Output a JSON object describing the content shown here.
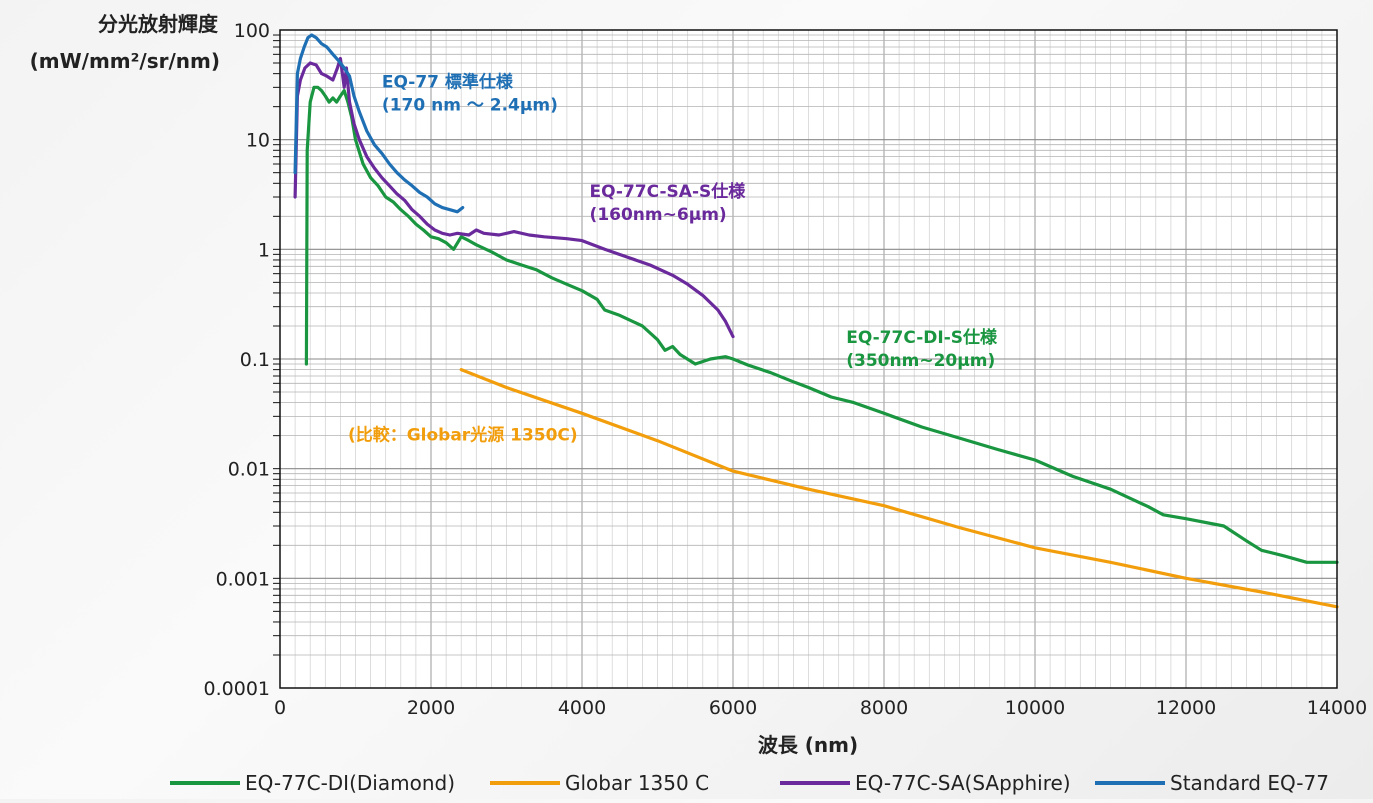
{
  "chart_data": {
    "type": "line",
    "ylabel_line1": "分光放射輝度",
    "ylabel_line2": "(mW/mm²/sr/nm)",
    "xlabel": "波長 (nm)",
    "x_scale": "linear",
    "y_scale": "log",
    "xlim": [
      0,
      14000
    ],
    "ylim": [
      0.0001,
      100
    ],
    "x_ticks": [
      0,
      2000,
      4000,
      6000,
      8000,
      10000,
      12000,
      14000
    ],
    "x_tick_labels": [
      "0",
      "2000",
      "4000",
      "6000",
      "8000",
      "10000",
      "12000",
      "14000"
    ],
    "y_ticks": [
      0.0001,
      0.001,
      0.01,
      0.1,
      1,
      10,
      100
    ],
    "y_tick_labels": [
      "0.0001",
      "0.001",
      "0.01",
      "0.1",
      "1",
      "10",
      "100"
    ],
    "grid": true,
    "legend_position": "bottom",
    "series": [
      {
        "name": "EQ-77C-DI(Diamond)",
        "color": "#1a9641",
        "points": [
          [
            350,
            0.09
          ],
          [
            360,
            8
          ],
          [
            400,
            22
          ],
          [
            450,
            30
          ],
          [
            500,
            30
          ],
          [
            550,
            28
          ],
          [
            600,
            25
          ],
          [
            650,
            22
          ],
          [
            700,
            24
          ],
          [
            750,
            22
          ],
          [
            800,
            25
          ],
          [
            850,
            28
          ],
          [
            900,
            22
          ],
          [
            950,
            16
          ],
          [
            1000,
            10
          ],
          [
            1100,
            6
          ],
          [
            1200,
            4.5
          ],
          [
            1300,
            3.8
          ],
          [
            1400,
            3.0
          ],
          [
            1500,
            2.7
          ],
          [
            1600,
            2.3
          ],
          [
            1700,
            2.0
          ],
          [
            1800,
            1.7
          ],
          [
            1900,
            1.5
          ],
          [
            2000,
            1.3
          ],
          [
            2100,
            1.25
          ],
          [
            2200,
            1.15
          ],
          [
            2300,
            1.0
          ],
          [
            2400,
            1.3
          ],
          [
            2500,
            1.2
          ],
          [
            2600,
            1.1
          ],
          [
            2800,
            0.95
          ],
          [
            3000,
            0.8
          ],
          [
            3200,
            0.72
          ],
          [
            3400,
            0.65
          ],
          [
            3600,
            0.55
          ],
          [
            3800,
            0.48
          ],
          [
            4000,
            0.42
          ],
          [
            4200,
            0.35
          ],
          [
            4300,
            0.28
          ],
          [
            4500,
            0.25
          ],
          [
            4800,
            0.2
          ],
          [
            5000,
            0.15
          ],
          [
            5100,
            0.12
          ],
          [
            5200,
            0.13
          ],
          [
            5300,
            0.11
          ],
          [
            5500,
            0.09
          ],
          [
            5700,
            0.1
          ],
          [
            5900,
            0.105
          ],
          [
            6000,
            0.1
          ],
          [
            6200,
            0.088
          ],
          [
            6500,
            0.075
          ],
          [
            6800,
            0.062
          ],
          [
            7000,
            0.055
          ],
          [
            7300,
            0.045
          ],
          [
            7600,
            0.04
          ],
          [
            8000,
            0.032
          ],
          [
            8500,
            0.024
          ],
          [
            9000,
            0.019
          ],
          [
            9500,
            0.015
          ],
          [
            10000,
            0.012
          ],
          [
            10500,
            0.0085
          ],
          [
            11000,
            0.0065
          ],
          [
            11500,
            0.0045
          ],
          [
            11700,
            0.0038
          ],
          [
            12000,
            0.0035
          ],
          [
            12500,
            0.003
          ],
          [
            12800,
            0.0022
          ],
          [
            13000,
            0.0018
          ],
          [
            13300,
            0.0016
          ],
          [
            13600,
            0.0014
          ],
          [
            14000,
            0.0014
          ]
        ]
      },
      {
        "name": "Globar 1350 C",
        "color": "#f29e0c",
        "points": [
          [
            2400,
            0.08
          ],
          [
            3000,
            0.055
          ],
          [
            4000,
            0.032
          ],
          [
            5000,
            0.018
          ],
          [
            6000,
            0.0095
          ],
          [
            7000,
            0.0065
          ],
          [
            8000,
            0.0046
          ],
          [
            9000,
            0.0029
          ],
          [
            10000,
            0.0019
          ],
          [
            11000,
            0.0014
          ],
          [
            12000,
            0.001
          ],
          [
            13000,
            0.00075
          ],
          [
            14000,
            0.00055
          ]
        ]
      },
      {
        "name": "EQ-77C-SA(SApphire)",
        "color": "#6a2a9c",
        "points": [
          [
            200,
            3
          ],
          [
            230,
            25
          ],
          [
            270,
            35
          ],
          [
            330,
            45
          ],
          [
            400,
            50
          ],
          [
            480,
            48
          ],
          [
            550,
            40
          ],
          [
            620,
            38
          ],
          [
            700,
            35
          ],
          [
            760,
            45
          ],
          [
            800,
            55
          ],
          [
            850,
            30
          ],
          [
            880,
            45
          ],
          [
            920,
            22
          ],
          [
            980,
            14
          ],
          [
            1050,
            10
          ],
          [
            1150,
            7
          ],
          [
            1250,
            5.5
          ],
          [
            1350,
            4.5
          ],
          [
            1450,
            3.8
          ],
          [
            1550,
            3.2
          ],
          [
            1650,
            2.8
          ],
          [
            1750,
            2.3
          ],
          [
            1850,
            2.0
          ],
          [
            1950,
            1.7
          ],
          [
            2050,
            1.5
          ],
          [
            2150,
            1.4
          ],
          [
            2250,
            1.35
          ],
          [
            2350,
            1.4
          ],
          [
            2500,
            1.35
          ],
          [
            2600,
            1.5
          ],
          [
            2700,
            1.4
          ],
          [
            2900,
            1.35
          ],
          [
            3100,
            1.45
          ],
          [
            3300,
            1.35
          ],
          [
            3500,
            1.3
          ],
          [
            3800,
            1.25
          ],
          [
            4000,
            1.2
          ],
          [
            4300,
            1.0
          ],
          [
            4600,
            0.85
          ],
          [
            4900,
            0.72
          ],
          [
            5200,
            0.58
          ],
          [
            5400,
            0.48
          ],
          [
            5600,
            0.38
          ],
          [
            5800,
            0.28
          ],
          [
            5900,
            0.22
          ],
          [
            6000,
            0.16
          ]
        ]
      },
      {
        "name": "Standard EQ-77",
        "color": "#1f6fb4",
        "points": [
          [
            200,
            5
          ],
          [
            230,
            40
          ],
          [
            270,
            55
          ],
          [
            320,
            70
          ],
          [
            370,
            85
          ],
          [
            420,
            90
          ],
          [
            480,
            85
          ],
          [
            550,
            75
          ],
          [
            620,
            70
          ],
          [
            700,
            60
          ],
          [
            780,
            52
          ],
          [
            850,
            45
          ],
          [
            920,
            38
          ],
          [
            980,
            25
          ],
          [
            1050,
            18
          ],
          [
            1150,
            12
          ],
          [
            1250,
            9
          ],
          [
            1350,
            7.5
          ],
          [
            1450,
            6
          ],
          [
            1550,
            5
          ],
          [
            1650,
            4.3
          ],
          [
            1750,
            3.8
          ],
          [
            1850,
            3.3
          ],
          [
            1950,
            3.0
          ],
          [
            2050,
            2.6
          ],
          [
            2150,
            2.4
          ],
          [
            2250,
            2.3
          ],
          [
            2350,
            2.2
          ],
          [
            2420,
            2.4
          ]
        ]
      }
    ],
    "annotations": [
      {
        "lines": [
          "EQ-77 標準仕様",
          "(170 nm ～ 2.4µm)"
        ],
        "color": "#1f6fb4"
      },
      {
        "lines": [
          "EQ-77C-SA-S仕様",
          "(160nm~6µm)"
        ],
        "color": "#6a2a9c"
      },
      {
        "lines": [
          "EQ-77C-DI-S仕様",
          "(350nm~20µm)"
        ],
        "color": "#1a9641"
      },
      {
        "lines": [
          "(比較：Globar光源 1350C)"
        ],
        "color": "#f29e0c"
      }
    ]
  }
}
